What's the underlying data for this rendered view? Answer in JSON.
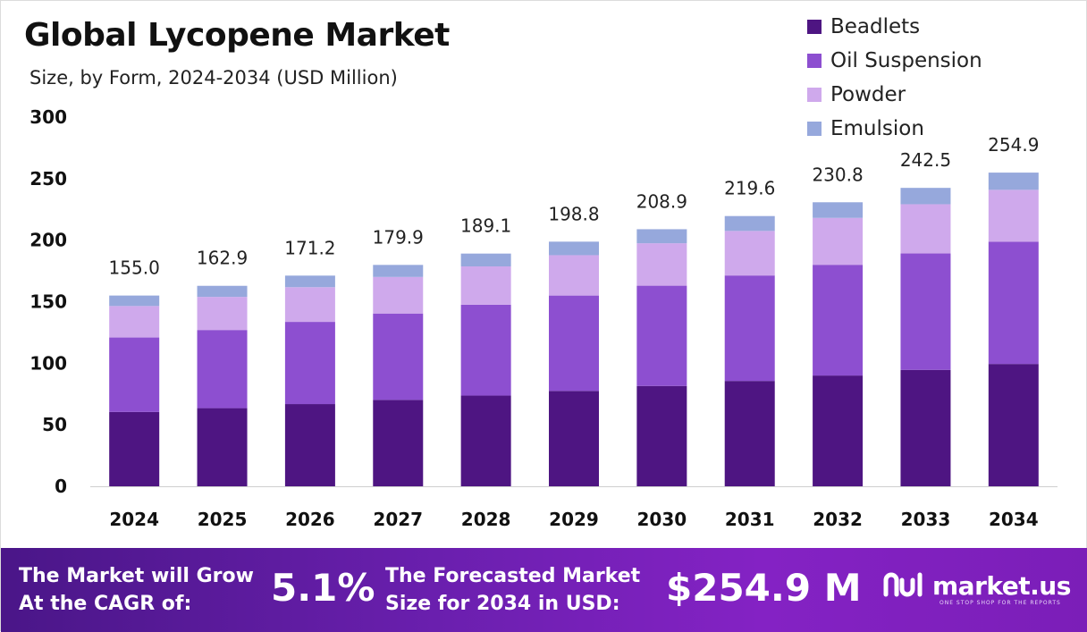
{
  "header": {
    "title": "Global Lycopene Market",
    "subtitle": "Size, by Form, 2024-2034 (USD Million)"
  },
  "chart_data": {
    "type": "bar",
    "stacked": true,
    "categories": [
      "2024",
      "2025",
      "2026",
      "2027",
      "2028",
      "2029",
      "2030",
      "2031",
      "2032",
      "2033",
      "2034"
    ],
    "series": [
      {
        "name": "Beadlets",
        "color": "#4e1582",
        "values": [
          60.4,
          63.5,
          66.8,
          70.2,
          73.7,
          77.5,
          81.5,
          85.6,
          90.0,
          94.6,
          99.4
        ]
      },
      {
        "name": "Oil Suspension",
        "color": "#8d4fd0",
        "values": [
          60.5,
          63.5,
          66.8,
          70.2,
          73.8,
          77.5,
          81.5,
          85.7,
          90.0,
          94.6,
          99.4
        ]
      },
      {
        "name": "Powder",
        "color": "#cfa9ec",
        "values": [
          25.6,
          26.9,
          28.2,
          29.7,
          31.2,
          32.8,
          34.5,
          36.2,
          38.1,
          40.0,
          42.1
        ]
      },
      {
        "name": "Emulsion",
        "color": "#96a8dc",
        "values": [
          8.5,
          9.0,
          9.4,
          9.8,
          10.4,
          11.0,
          11.4,
          12.1,
          12.7,
          13.3,
          14.0
        ]
      }
    ],
    "totals": [
      "155.0",
      "162.9",
      "171.2",
      "179.9",
      "189.1",
      "198.8",
      "208.9",
      "219.6",
      "230.8",
      "242.5",
      "254.9"
    ],
    "yticks": [
      "0",
      "50",
      "100",
      "150",
      "200",
      "250",
      "300"
    ],
    "ylim": [
      0,
      300
    ],
    "legend_position": "top-right",
    "grid": false
  },
  "footer": {
    "cagr_text_1": "The Market will Grow",
    "cagr_text_2": "At the CAGR of:",
    "cagr_value": "5.1%",
    "forecast_text_1": "The Forecasted Market",
    "forecast_text_2": "Size for 2034 in USD:",
    "forecast_value": "$254.9 M",
    "brand_name": "market.us",
    "brand_tagline": "ONE STOP SHOP FOR THE REPORTS"
  }
}
